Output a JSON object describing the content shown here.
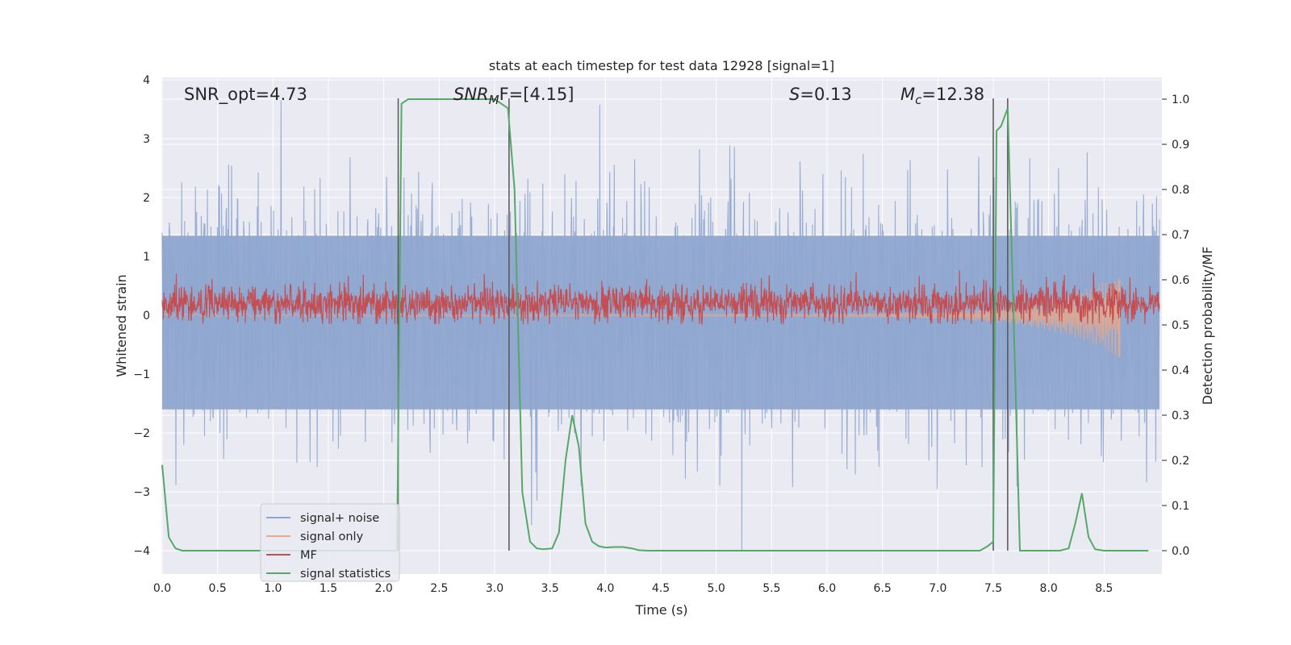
{
  "chart_data": {
    "type": "line",
    "title": "stats at each timestep for test data 12928 [signal=1]",
    "xlabel": "Time (s)",
    "ylabel": "Whitened strain",
    "ylabel_right": "Detection probability/MF",
    "xlim": [
      0.0,
      9.0
    ],
    "ylim": [
      -4.4,
      4.1
    ],
    "ylim_right": [
      -0.048,
      1.04
    ],
    "x_ticks": [
      "0.0",
      "0.5",
      "1.0",
      "1.5",
      "2.0",
      "2.5",
      "3.0",
      "3.5",
      "4.0",
      "4.5",
      "5.0",
      "5.5",
      "6.0",
      "6.5",
      "7.0",
      "7.5",
      "8.0",
      "8.5"
    ],
    "x_tick_values": [
      0.0,
      0.5,
      1.0,
      1.5,
      2.0,
      2.5,
      3.0,
      3.5,
      4.0,
      4.5,
      5.0,
      5.5,
      6.0,
      6.5,
      7.0,
      7.5,
      8.0,
      8.5
    ],
    "y_ticks": [
      "4",
      "3",
      "2",
      "1",
      "0",
      "−1",
      "−2",
      "−3",
      "−4"
    ],
    "y_tick_values": [
      4,
      3,
      2,
      1,
      0,
      -1,
      -2,
      -3,
      -4
    ],
    "y_right_ticks": [
      "1.0",
      "0.9",
      "0.8",
      "0.7",
      "0.6",
      "0.5",
      "0.4",
      "0.3",
      "0.2",
      "0.1",
      "0.0"
    ],
    "y_right_tick_values": [
      1.0,
      0.9,
      0.8,
      0.7,
      0.6,
      0.5,
      0.4,
      0.3,
      0.2,
      0.1,
      0.0
    ],
    "grid": true,
    "legend_position": "lower-left",
    "annotations": {
      "snr_opt": "SNR_opt=4.73",
      "snr_mf_sym": "SNR",
      "snr_mf_sub": "M",
      "snr_mf_rest": "F=[4.15]",
      "s_sym": "S",
      "s_rest": "=0.13",
      "mc_sym": "M",
      "mc_sub": "c",
      "mc_rest": "=12.38"
    },
    "vertical_markers_s": [
      2.13,
      3.13,
      7.5,
      7.63
    ],
    "series": [
      {
        "name": "signal+ noise",
        "color": "#8fa6cf",
        "axis": "left",
        "description_values": {
          "typical_envelope": [
            -2.0,
            2.2
          ],
          "peak_max": 3.65,
          "peak_min": -4.0
        }
      },
      {
        "name": "signal only",
        "color": "#e8a88a",
        "axis": "left",
        "values_xy": [
          [
            0.0,
            0.0
          ],
          [
            7.0,
            0.0
          ],
          [
            7.5,
            0.02
          ],
          [
            8.0,
            0.05
          ],
          [
            8.4,
            0.2
          ],
          [
            8.64,
            0.7
          ]
        ],
        "envelope_lower_xy": [
          [
            0.0,
            -0.01
          ],
          [
            7.0,
            -0.03
          ],
          [
            7.5,
            -0.08
          ],
          [
            8.0,
            -0.2
          ],
          [
            8.4,
            -0.4
          ],
          [
            8.64,
            -0.7
          ]
        ]
      },
      {
        "name": "MF",
        "color": "#c44e52",
        "axis": "right",
        "description_values": {
          "typical_range": [
            0.5,
            0.6
          ],
          "peak_max": 0.63
        }
      },
      {
        "name": "signal statistics",
        "color": "#55a868",
        "axis": "right",
        "x": [
          0.0,
          0.06,
          0.12,
          0.18,
          0.25,
          0.5,
          1.0,
          1.5,
          2.0,
          2.12,
          2.16,
          2.22,
          2.5,
          2.8,
          3.0,
          3.06,
          3.12,
          3.18,
          3.25,
          3.32,
          3.38,
          3.44,
          3.52,
          3.58,
          3.64,
          3.7,
          3.76,
          3.82,
          3.88,
          3.94,
          4.0,
          4.08,
          4.16,
          4.24,
          4.3,
          4.38,
          4.5,
          5.0,
          6.0,
          7.0,
          7.38,
          7.45,
          7.5,
          7.53,
          7.57,
          7.63,
          7.68,
          7.74,
          7.8,
          8.0,
          8.1,
          8.18,
          8.24,
          8.3,
          8.36,
          8.42,
          8.5,
          8.7,
          8.9
        ],
        "values": [
          0.19,
          0.03,
          0.005,
          0.0,
          0.0,
          0.0,
          0.0,
          0.0,
          0.0,
          0.0,
          0.99,
          1.0,
          1.0,
          1.0,
          1.0,
          0.99,
          0.98,
          0.8,
          0.13,
          0.02,
          0.005,
          0.003,
          0.005,
          0.04,
          0.2,
          0.3,
          0.23,
          0.06,
          0.02,
          0.01,
          0.007,
          0.008,
          0.008,
          0.005,
          0.001,
          0.0,
          0.0,
          0.0,
          0.0,
          0.0,
          0.0,
          0.01,
          0.02,
          0.93,
          0.94,
          0.98,
          0.55,
          0.0,
          0.0,
          0.0,
          0.0,
          0.005,
          0.06,
          0.127,
          0.03,
          0.003,
          0.0,
          0.0,
          0.0
        ]
      }
    ]
  }
}
